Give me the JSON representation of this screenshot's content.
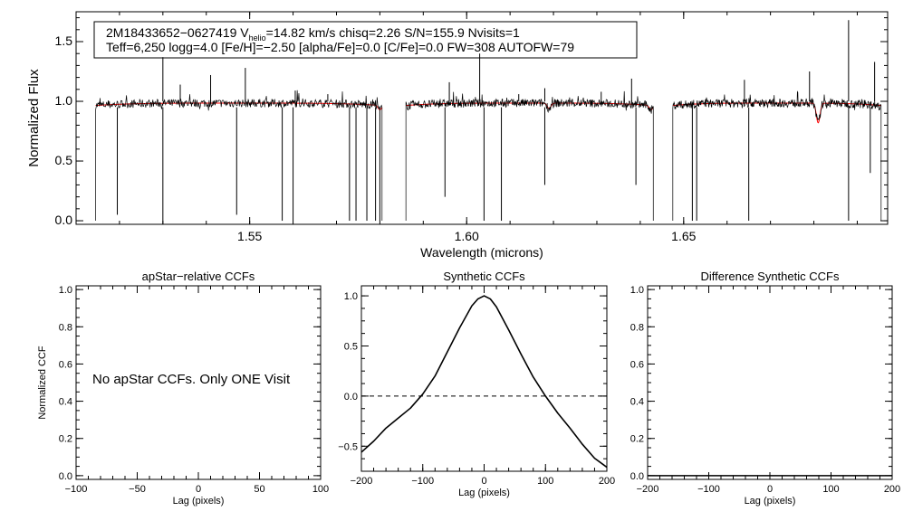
{
  "figure": {
    "infobox": {
      "line1_pre": "2M18433652−0627419  V",
      "line1_sub": "helio",
      "line1_post": "=14.82 km/s  chisq=2.26  S/N=155.9  Nvisits=1",
      "line2": "Teff=6,250 logg=4.0 [Fe/H]=−2.50 [alpha/Fe]=0.0 [C/Fe]=0.0 FW=308 AUTOFW=79"
    },
    "annotation": "No apStar CCFs.  Only ONE Visit"
  },
  "chart_data": [
    {
      "id": "spectrum",
      "type": "line",
      "title": "",
      "xlabel": "Wavelength (microns)",
      "ylabel": "Normalized Flux",
      "xlim": [
        1.51,
        1.697
      ],
      "ylim": [
        -0.03,
        1.75
      ],
      "xticks": [
        1.55,
        1.6,
        1.65
      ],
      "xtick_labels": [
        "1.55",
        "1.60",
        "1.65"
      ],
      "yticks": [
        0.0,
        0.5,
        1.0,
        1.5
      ],
      "ytick_labels": [
        "0.0",
        "0.5",
        "1.0",
        "1.5"
      ],
      "chips": [
        [
          1.5145,
          1.5805
        ],
        [
          1.586,
          1.643
        ],
        [
          1.6475,
          1.6955
        ]
      ],
      "spikes_up": [
        [
          1.53,
          1.37
        ],
        [
          1.534,
          1.14
        ],
        [
          1.541,
          1.22
        ],
        [
          1.549,
          1.28
        ],
        [
          1.5605,
          1.09
        ],
        [
          1.568,
          1.06
        ],
        [
          1.596,
          1.16
        ],
        [
          1.603,
          1.4
        ],
        [
          1.612,
          1.06
        ],
        [
          1.618,
          1.11
        ],
        [
          1.631,
          1.08
        ],
        [
          1.638,
          1.19
        ],
        [
          1.664,
          1.18
        ],
        [
          1.679,
          1.25
        ],
        [
          1.688,
          1.68
        ],
        [
          1.694,
          1.33
        ]
      ],
      "spikes_down": [
        [
          1.5195,
          0.05
        ],
        [
          1.53,
          -0.03
        ],
        [
          1.547,
          0.05
        ],
        [
          1.5575,
          0.0
        ],
        [
          1.56,
          0.0
        ],
        [
          1.573,
          0.0
        ],
        [
          1.5745,
          0.0
        ],
        [
          1.577,
          0.0
        ],
        [
          1.579,
          0.0
        ],
        [
          1.58,
          0.0
        ],
        [
          1.595,
          0.2
        ],
        [
          1.604,
          0.0
        ],
        [
          1.608,
          0.0
        ],
        [
          1.618,
          0.3
        ],
        [
          1.639,
          0.3
        ],
        [
          1.652,
          0.0
        ],
        [
          1.653,
          0.0
        ],
        [
          1.665,
          0.0
        ],
        [
          1.688,
          0.0
        ],
        [
          1.693,
          0.4
        ]
      ],
      "model_dips": [
        [
          1.619,
          0.94
        ],
        [
          1.6425,
          0.93
        ],
        [
          1.681,
          0.82
        ],
        [
          1.58,
          0.93
        ]
      ],
      "series": [
        {
          "name": "observed",
          "color": "#000000"
        },
        {
          "name": "model",
          "color": "#ff0000"
        }
      ]
    },
    {
      "id": "apstar-ccf",
      "type": "line",
      "title": "apStar−relative CCFs",
      "xlabel": "Lag (pixels)",
      "ylabel": "Normalized CCF",
      "xlim": [
        -100,
        100
      ],
      "ylim": [
        -0.02,
        1.02
      ],
      "xticks": [
        -100,
        -50,
        0,
        50,
        100
      ],
      "xtick_labels": [
        "−100",
        "−50",
        "0",
        "50",
        "100"
      ],
      "yticks": [
        0.0,
        0.2,
        0.4,
        0.6,
        0.8,
        1.0
      ],
      "ytick_labels": [
        "0.0",
        "0.2",
        "0.4",
        "0.6",
        "0.8",
        "1.0"
      ],
      "series": []
    },
    {
      "id": "synthetic-ccf",
      "type": "line",
      "title": "Synthetic CCFs",
      "xlabel": "Lag (pixels)",
      "ylabel": "",
      "xlim": [
        -200,
        200
      ],
      "ylim": [
        -0.75,
        1.1
      ],
      "xticks": [
        -200,
        -100,
        0,
        100,
        200
      ],
      "xtick_labels": [
        "−200",
        "−100",
        "0",
        "100",
        "200"
      ],
      "yticks": [
        -0.5,
        0.0,
        0.5,
        1.0
      ],
      "ytick_labels": [
        "−0.5",
        "0.0",
        "0.5",
        "1.0"
      ],
      "reference_line": 0.0,
      "series": [
        {
          "name": "synthetic",
          "x": [
            -200,
            -180,
            -160,
            -140,
            -120,
            -100,
            -80,
            -60,
            -40,
            -20,
            -10,
            0,
            10,
            20,
            40,
            60,
            80,
            100,
            120,
            140,
            160,
            180,
            200
          ],
          "y": [
            -0.56,
            -0.45,
            -0.32,
            -0.22,
            -0.12,
            0.02,
            0.2,
            0.44,
            0.68,
            0.9,
            0.97,
            1.0,
            0.97,
            0.89,
            0.66,
            0.42,
            0.19,
            0.0,
            -0.17,
            -0.32,
            -0.48,
            -0.62,
            -0.71
          ]
        }
      ]
    },
    {
      "id": "difference-ccf",
      "type": "line",
      "title": "Difference Synthetic CCFs",
      "xlabel": "Lag (pixels)",
      "ylabel": "",
      "xlim": [
        -200,
        200
      ],
      "ylim": [
        -0.02,
        1.02
      ],
      "xticks": [
        -200,
        -100,
        0,
        100,
        200
      ],
      "xtick_labels": [
        "−200",
        "−100",
        "0",
        "100",
        "200"
      ],
      "yticks": [
        0.0,
        0.2,
        0.4,
        0.6,
        0.8,
        1.0
      ],
      "ytick_labels": [
        "0.0",
        "0.2",
        "0.4",
        "0.6",
        "0.8",
        "1.0"
      ],
      "series": [
        {
          "name": "difference",
          "x": [
            -200,
            200
          ],
          "y": [
            0.0,
            0.0
          ]
        }
      ]
    }
  ]
}
